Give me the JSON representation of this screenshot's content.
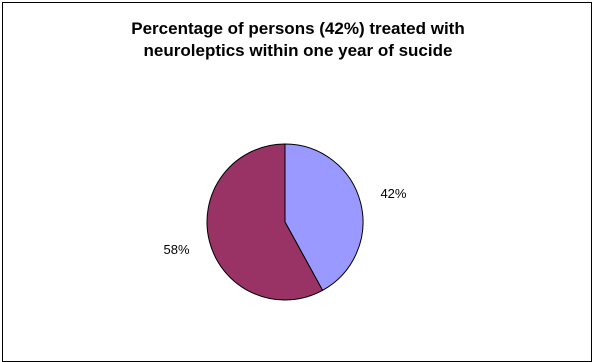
{
  "chart_data": {
    "type": "pie",
    "title_lines": [
      "Percentage of persons (42%) treated with",
      "neuroleptics within one year of sucide"
    ],
    "slices": [
      {
        "value": 42,
        "label": "42%",
        "color": "#9999ff"
      },
      {
        "value": 58,
        "label": "58%",
        "color": "#993366"
      }
    ],
    "legend": "none",
    "border_color": "#000000"
  }
}
